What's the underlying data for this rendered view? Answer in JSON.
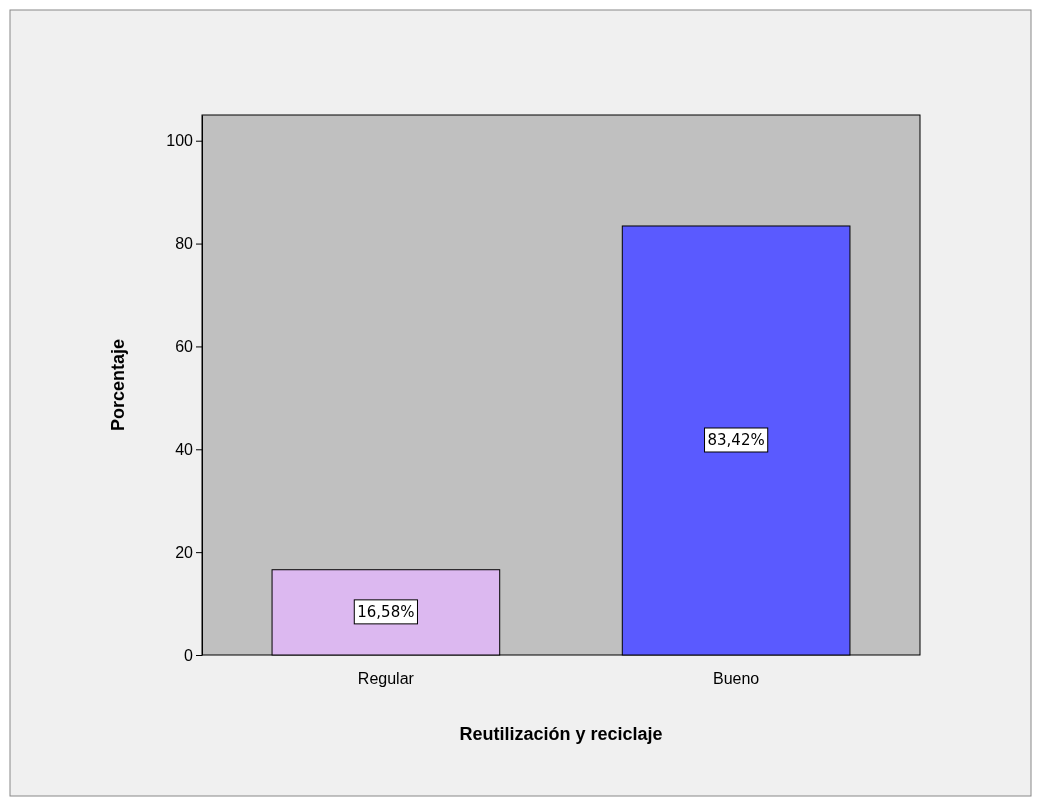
{
  "chart_data": {
    "type": "bar",
    "xlabel": "Reutilización y reciclaje",
    "ylabel": "Porcentaje",
    "categories": [
      "Regular",
      "Bueno"
    ],
    "values": [
      16.58,
      83.42
    ],
    "colors": [
      "#dcb8f0",
      "#5a5aff"
    ],
    "value_labels": [
      "16,58%",
      "83,42%"
    ],
    "ylim": [
      0,
      105
    ],
    "yticks": [
      0,
      20,
      40,
      60,
      80,
      100
    ],
    "grid": false
  }
}
